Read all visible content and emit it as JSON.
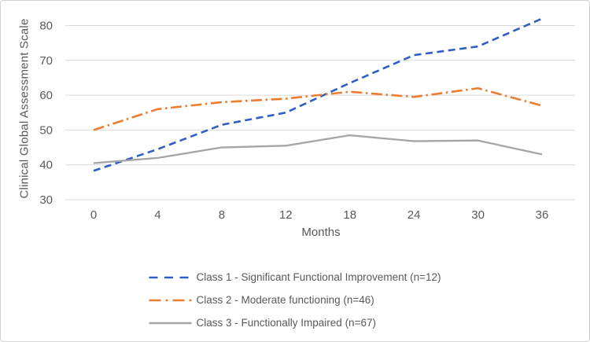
{
  "window": {
    "background": "#FFFFFF",
    "border_color": "#D2D2D2"
  },
  "chart_data": {
    "type": "line",
    "title": "",
    "xlabel": "Months",
    "ylabel": "Clinical Global Assessment Scale",
    "categories": [
      "0",
      "4",
      "8",
      "12",
      "18",
      "24",
      "30",
      "36"
    ],
    "ylim": [
      30,
      80
    ],
    "y_ticks": [
      30,
      40,
      50,
      60,
      70,
      80
    ],
    "grid": "horizontal gridlines only",
    "gridline_color": "#D9D9D9",
    "axis_text_color": "#595959",
    "legend_position": "bottom",
    "series": [
      {
        "name": "Class 1 - Significant Functional Improvement (n=12)",
        "color": "#2F5FC5",
        "line_style": "dashed",
        "values": [
          38.3,
          44.5,
          51.5,
          55,
          63.5,
          71.5,
          74,
          82
        ]
      },
      {
        "name": "Class 2 - Moderate functioning (n=46)",
        "color": "#ED7D31",
        "line_style": "dash-dot",
        "values": [
          50,
          56,
          58,
          59,
          61,
          59.5,
          62,
          57
        ]
      },
      {
        "name": "Class 3 - Functionally Impaired (n=67)",
        "color": "#A5A5A5",
        "line_style": "solid",
        "values": [
          40.5,
          42,
          45,
          45.5,
          48.5,
          46.8,
          47,
          43
        ]
      }
    ]
  }
}
